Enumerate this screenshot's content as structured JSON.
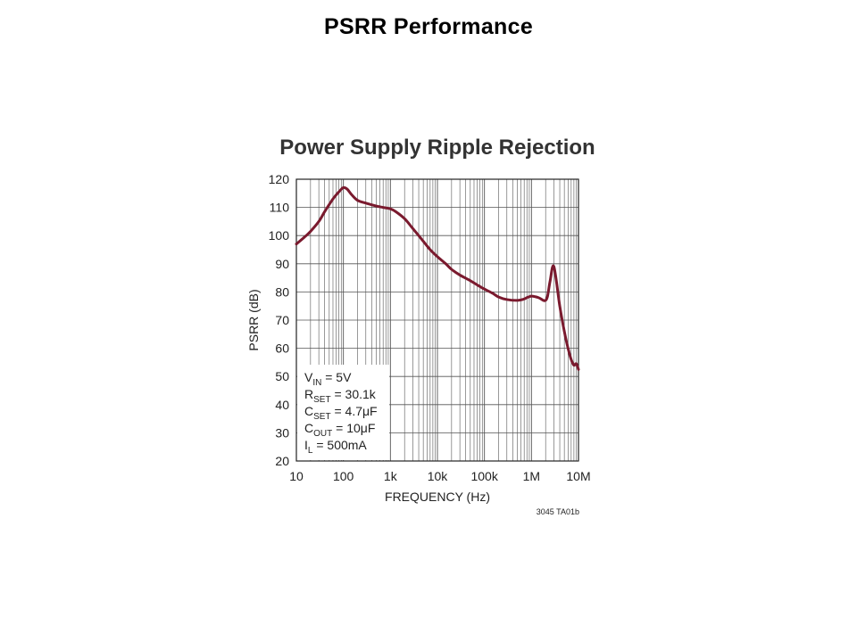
{
  "slide": {
    "title": "PSRR Performance"
  },
  "chart_data": {
    "type": "line",
    "title": "Power Supply Ripple Rejection",
    "xlabel": "FREQUENCY (Hz)",
    "ylabel": "PSRR (dB)",
    "x_scale": "log",
    "xlim": [
      10,
      10000000
    ],
    "ylim": [
      20,
      120
    ],
    "x_ticks": [
      10,
      100,
      1000,
      10000,
      100000,
      1000000,
      10000000
    ],
    "x_tick_labels": [
      "10",
      "100",
      "1k",
      "10k",
      "100k",
      "1M",
      "10M"
    ],
    "y_ticks": [
      20,
      30,
      40,
      50,
      60,
      70,
      80,
      90,
      100,
      110,
      120
    ],
    "y_tick_labels": [
      "20",
      "30",
      "40",
      "50",
      "60",
      "70",
      "80",
      "90",
      "100",
      "110",
      "120"
    ],
    "grid": true,
    "figure_id": "3045 TA01b",
    "conditions": [
      {
        "sym": "V",
        "sub": "IN",
        "rest": " = 5V"
      },
      {
        "sym": "R",
        "sub": "SET",
        "rest": " = 30.1k"
      },
      {
        "sym": "C",
        "sub": "SET",
        "rest": " = 4.7μF"
      },
      {
        "sym": "C",
        "sub": "OUT",
        "rest": " = 10μF"
      },
      {
        "sym": "I",
        "sub": "L",
        "rest": " = 500mA"
      }
    ],
    "colors": {
      "series": "#7a1a2e",
      "grid": "#555555"
    },
    "series": [
      {
        "x": [
          10,
          15,
          20,
          30,
          40,
          60,
          80,
          100,
          120,
          150,
          200,
          300,
          500,
          700,
          1000,
          1300,
          2000,
          3000,
          5000,
          7000,
          10000,
          15000,
          20000,
          30000,
          50000,
          70000,
          100000,
          150000,
          200000,
          300000,
          500000,
          700000,
          800000,
          1000000,
          1200000,
          1400000,
          1600000,
          1800000,
          2000000,
          2200000,
          2500000,
          3000000,
          4000000,
          5000000,
          6000000,
          7000000,
          8000000,
          9000000,
          10000000
        ],
        "y": [
          97,
          99.5,
          101.5,
          105,
          108.5,
          113,
          115.5,
          117,
          116.5,
          114.5,
          112.5,
          111.5,
          110.5,
          110,
          109.5,
          108.5,
          106,
          102.5,
          98,
          95,
          92.5,
          90,
          88,
          86,
          84,
          82.5,
          81,
          79.5,
          78.2,
          77.3,
          77,
          77.5,
          78,
          78.5,
          78.3,
          78,
          77.5,
          77,
          77,
          78.5,
          84,
          89,
          75,
          66,
          60,
          56,
          54,
          54.5,
          52.5
        ]
      }
    ]
  }
}
